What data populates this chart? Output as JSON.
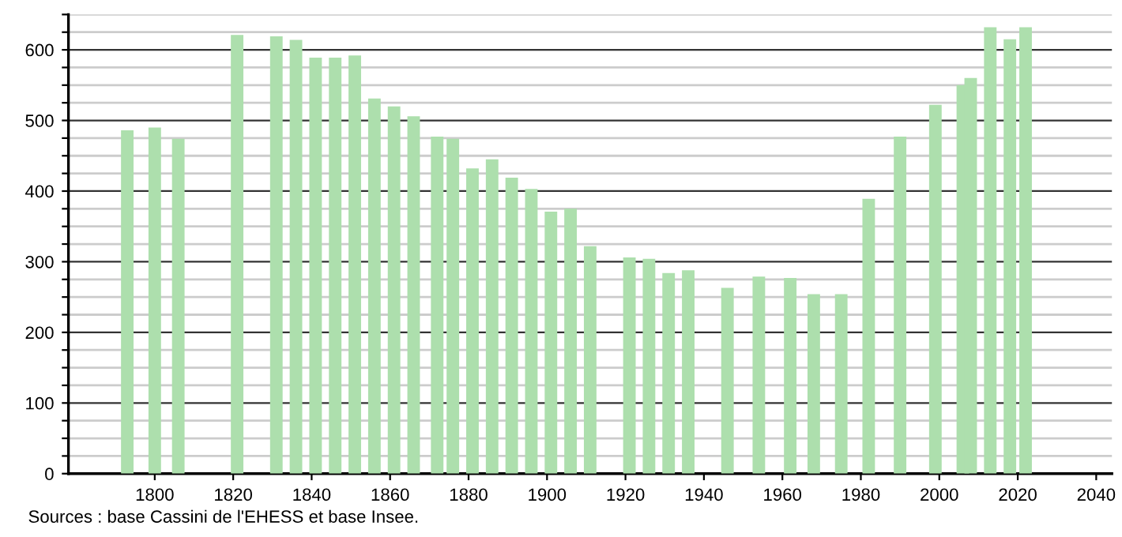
{
  "chart_data": {
    "type": "bar",
    "x": [
      1793,
      1800,
      1806,
      1821,
      1831,
      1836,
      1841,
      1846,
      1851,
      1856,
      1861,
      1866,
      1872,
      1876,
      1881,
      1886,
      1891,
      1896,
      1901,
      1906,
      1911,
      1921,
      1926,
      1931,
      1936,
      1946,
      1954,
      1962,
      1968,
      1975,
      1982,
      1990,
      1999,
      2006,
      2008,
      2013,
      2018,
      2022
    ],
    "values": [
      486,
      490,
      474,
      621,
      619,
      614,
      589,
      589,
      592,
      531,
      520,
      506,
      477,
      474,
      432,
      445,
      419,
      403,
      371,
      375,
      322,
      306,
      304,
      284,
      288,
      263,
      279,
      277,
      254,
      254,
      389,
      477,
      522,
      550,
      560,
      632,
      615,
      632
    ],
    "color": "#addfad",
    "xlim": [
      1778,
      2044
    ],
    "xticks": [
      1800,
      1820,
      1840,
      1860,
      1880,
      1900,
      1920,
      1940,
      1960,
      1980,
      2000,
      2020,
      2040
    ],
    "ylim": [
      0,
      650
    ],
    "yticks": [
      0,
      {
        "value": 25,
        "label": null
      },
      {
        "value": 50,
        "label": null
      },
      {
        "value": 75,
        "label": null
      },
      100,
      {
        "value": 125,
        "label": null
      },
      {
        "value": 150,
        "label": null
      },
      {
        "value": 175,
        "label": null
      },
      200,
      {
        "value": 225,
        "label": null
      },
      {
        "value": 250,
        "label": null
      },
      {
        "value": 275,
        "label": null
      },
      300,
      {
        "value": 325,
        "label": null
      },
      {
        "value": 350,
        "label": null
      },
      {
        "value": 375,
        "label": null
      },
      400,
      {
        "value": 425,
        "label": null
      },
      {
        "value": 450,
        "label": null
      },
      {
        "value": 475,
        "label": null
      },
      500,
      {
        "value": 525,
        "label": null
      },
      {
        "value": 550,
        "label": null
      },
      {
        "value": 575,
        "label": null
      },
      600,
      {
        "value": 625,
        "label": null
      },
      {
        "value": 650,
        "label": null
      }
    ],
    "grid": "y",
    "annotations": [
      "Sources : base Cassini de l'EHESS et base Insee."
    ]
  }
}
